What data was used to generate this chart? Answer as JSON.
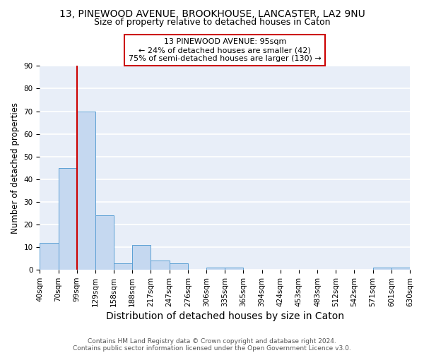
{
  "title1": "13, PINEWOOD AVENUE, BROOKHOUSE, LANCASTER, LA2 9NU",
  "title2": "Size of property relative to detached houses in Caton",
  "xlabel": "Distribution of detached houses by size in Caton",
  "ylabel": "Number of detached properties",
  "footnote1": "Contains HM Land Registry data © Crown copyright and database right 2024.",
  "footnote2": "Contains public sector information licensed under the Open Government Licence v3.0.",
  "bin_labels": [
    "40sqm",
    "70sqm",
    "99sqm",
    "129sqm",
    "158sqm",
    "188sqm",
    "217sqm",
    "247sqm",
    "276sqm",
    "306sqm",
    "335sqm",
    "365sqm",
    "394sqm",
    "424sqm",
    "453sqm",
    "483sqm",
    "512sqm",
    "542sqm",
    "571sqm",
    "601sqm",
    "630sqm"
  ],
  "bar_values": [
    12,
    45,
    70,
    24,
    3,
    11,
    4,
    3,
    0,
    1,
    1,
    0,
    0,
    0,
    0,
    0,
    0,
    0,
    1,
    1
  ],
  "bar_color": "#c5d8f0",
  "bar_edge_color": "#5a9fd4",
  "red_line_color": "#cc0000",
  "annotation_text": "13 PINEWOOD AVENUE: 95sqm\n← 24% of detached houses are smaller (42)\n75% of semi-detached houses are larger (130) →",
  "annotation_box_color": "white",
  "annotation_box_edge_color": "#cc0000",
  "ylim": [
    0,
    90
  ],
  "yticks": [
    0,
    10,
    20,
    30,
    40,
    50,
    60,
    70,
    80,
    90
  ],
  "background_color": "#e8eef8",
  "grid_color": "white",
  "title1_fontsize": 10,
  "title2_fontsize": 9,
  "xlabel_fontsize": 10,
  "ylabel_fontsize": 8.5,
  "tick_fontsize": 7.5,
  "annotation_fontsize": 8
}
